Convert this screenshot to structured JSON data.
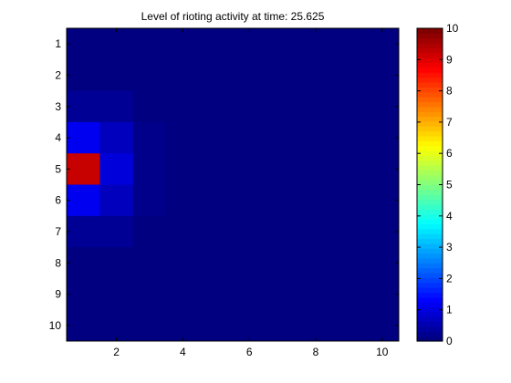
{
  "chart_data": {
    "type": "heatmap",
    "title": "Level of rioting activity at time: 25.625",
    "xlabel": "",
    "ylabel": "",
    "x_ticks": [
      2,
      4,
      6,
      8,
      10
    ],
    "y_ticks": [
      1,
      2,
      3,
      4,
      5,
      6,
      7,
      8,
      9,
      10
    ],
    "xlim": [
      0.5,
      10.5
    ],
    "ylim": [
      0.5,
      10.5
    ],
    "y_direction": "reverse",
    "colormap": "jet",
    "clim": [
      0,
      10
    ],
    "colorbar": {
      "ticks": [
        0,
        1,
        2,
        3,
        4,
        5,
        6,
        7,
        8,
        9,
        10
      ],
      "placement": "right"
    },
    "grid": false,
    "values": [
      [
        0,
        0,
        0,
        0,
        0,
        0,
        0,
        0,
        0,
        0
      ],
      [
        0,
        0,
        0,
        0,
        0,
        0,
        0,
        0,
        0,
        0
      ],
      [
        0.2,
        0.2,
        0,
        0,
        0,
        0,
        0,
        0,
        0,
        0
      ],
      [
        1.1,
        0.6,
        0.1,
        0,
        0,
        0,
        0,
        0,
        0,
        0
      ],
      [
        9.3,
        0.9,
        0.1,
        0,
        0,
        0,
        0,
        0,
        0,
        0
      ],
      [
        1.1,
        0.6,
        0.1,
        0,
        0,
        0,
        0,
        0,
        0,
        0
      ],
      [
        0.2,
        0.2,
        0,
        0,
        0,
        0,
        0,
        0,
        0,
        0
      ],
      [
        0,
        0,
        0,
        0,
        0,
        0,
        0,
        0,
        0,
        0
      ],
      [
        0,
        0,
        0,
        0,
        0,
        0,
        0,
        0,
        0,
        0
      ],
      [
        0,
        0,
        0,
        0,
        0,
        0,
        0,
        0,
        0,
        0
      ]
    ]
  }
}
